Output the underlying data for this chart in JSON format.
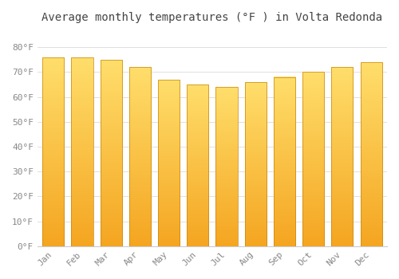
{
  "months": [
    "Jan",
    "Feb",
    "Mar",
    "Apr",
    "May",
    "Jun",
    "Jul",
    "Aug",
    "Sep",
    "Oct",
    "Nov",
    "Dec"
  ],
  "values": [
    76,
    76,
    75,
    72,
    67,
    65,
    64,
    66,
    68,
    70,
    72,
    74
  ],
  "bar_color_top": "#FFD966",
  "bar_color_bottom": "#F5A623",
  "background_color": "#FFFFFF",
  "grid_color": "#E0E0E0",
  "title": "Average monthly temperatures (°F ) in Volta Redonda",
  "title_fontsize": 10,
  "ylabel_ticks": [
    "0°F",
    "10°F",
    "20°F",
    "30°F",
    "40°F",
    "50°F",
    "60°F",
    "70°F",
    "80°F"
  ],
  "ytick_values": [
    0,
    10,
    20,
    30,
    40,
    50,
    60,
    70,
    80
  ],
  "ylim": [
    0,
    88
  ],
  "tick_fontsize": 8,
  "bar_width": 0.75,
  "bar_edge_color": "#C8860A",
  "bar_edge_width": 0.5
}
